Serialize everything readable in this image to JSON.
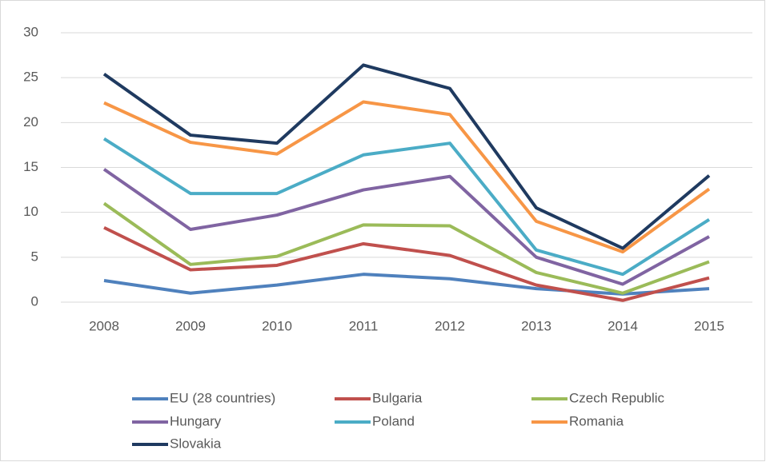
{
  "chart_data": {
    "type": "line",
    "categories": [
      "2008",
      "2009",
      "2010",
      "2011",
      "2012",
      "2013",
      "2014",
      "2015"
    ],
    "series": [
      {
        "name": "EU (28 countries)",
        "color": "#4f81bd",
        "values": [
          2.4,
          1.0,
          1.9,
          3.1,
          2.6,
          1.5,
          0.9,
          1.5
        ]
      },
      {
        "name": "Bulgaria",
        "color": "#c0504d",
        "values": [
          8.3,
          3.6,
          4.1,
          6.5,
          5.2,
          1.9,
          0.2,
          2.7
        ]
      },
      {
        "name": "Czech Republic",
        "color": "#9bbb59",
        "values": [
          11.0,
          4.2,
          5.1,
          8.6,
          8.5,
          3.3,
          1.0,
          4.5
        ]
      },
      {
        "name": "Hungary",
        "color": "#8064a2",
        "values": [
          14.8,
          8.1,
          9.7,
          12.5,
          14.0,
          5.0,
          2.0,
          7.3
        ]
      },
      {
        "name": "Poland",
        "color": "#4bacc6",
        "values": [
          18.2,
          12.1,
          12.1,
          16.4,
          17.7,
          5.8,
          3.1,
          9.2
        ]
      },
      {
        "name": "Romania",
        "color": "#f79646",
        "values": [
          22.2,
          17.8,
          16.5,
          22.3,
          20.9,
          9.0,
          5.6,
          12.6
        ]
      },
      {
        "name": "Slovakia",
        "color": "#1f3a60",
        "values": [
          25.4,
          18.6,
          17.7,
          26.4,
          23.8,
          10.5,
          6.0,
          14.1
        ]
      }
    ],
    "ylim": [
      0,
      30
    ],
    "yticks": [
      0,
      5,
      10,
      15,
      20,
      25,
      30
    ],
    "grid": true
  }
}
